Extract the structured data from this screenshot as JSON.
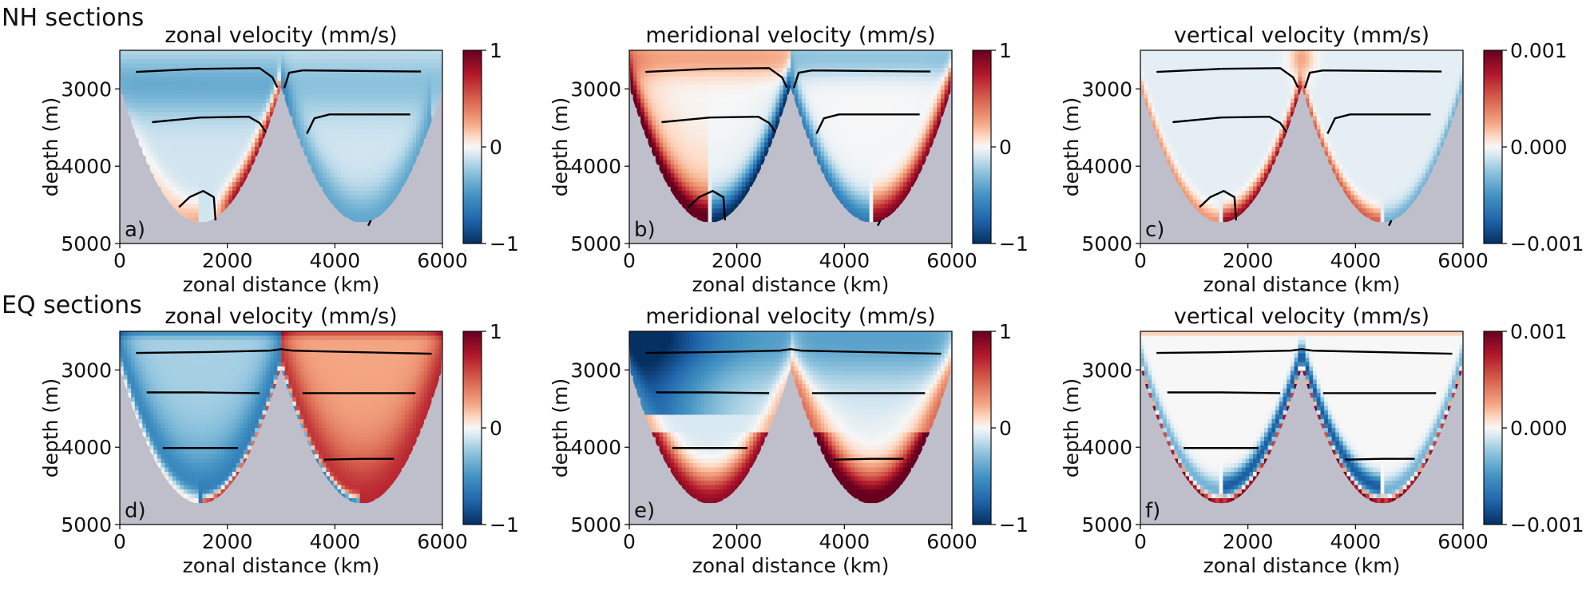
{
  "figure": {
    "sections": [
      "NH sections",
      "EQ sections"
    ],
    "bathymetry_color": "#bfbfcb"
  },
  "chart_data": [
    {
      "type": "heatmap",
      "row": 0,
      "col": 0,
      "panel_label": "a)",
      "title": "zonal velocity (mm/s)",
      "xlabel": "zonal distance (km)",
      "ylabel": "depth (m)",
      "xlim": [
        0,
        6000
      ],
      "ylim": [
        5000,
        2500
      ],
      "xticks": [
        "0",
        "2000",
        "4000",
        "6000"
      ],
      "yticks": [
        "3000",
        "4000",
        "5000"
      ],
      "colorbar": {
        "min": -1,
        "max": 1,
        "ticks": [
          "1",
          "0",
          "−1"
        ]
      },
      "field": "nh_u"
    },
    {
      "type": "heatmap",
      "row": 0,
      "col": 1,
      "panel_label": "b)",
      "title": "meridional velocity (mm/s)",
      "xlabel": "zonal distance (km)",
      "ylabel": "depth (m)",
      "xlim": [
        0,
        6000
      ],
      "ylim": [
        5000,
        2500
      ],
      "xticks": [
        "0",
        "2000",
        "4000",
        "6000"
      ],
      "yticks": [
        "3000",
        "4000",
        "5000"
      ],
      "colorbar": {
        "min": -1,
        "max": 1,
        "ticks": [
          "1",
          "0",
          "−1"
        ]
      },
      "field": "nh_v"
    },
    {
      "type": "heatmap",
      "row": 0,
      "col": 2,
      "panel_label": "c)",
      "title": "vertical velocity (mm/s)",
      "xlabel": "zonal distance (km)",
      "ylabel": "depth (m)",
      "xlim": [
        0,
        6000
      ],
      "ylim": [
        5000,
        2500
      ],
      "xticks": [
        "0",
        "2000",
        "4000",
        "6000"
      ],
      "yticks": [
        "3000",
        "4000",
        "5000"
      ],
      "colorbar": {
        "min": -0.001,
        "max": 0.001,
        "ticks": [
          "0.001",
          "0.000",
          "−0.001"
        ]
      },
      "field": "nh_w"
    },
    {
      "type": "heatmap",
      "row": 1,
      "col": 0,
      "panel_label": "d)",
      "title": "zonal velocity (mm/s)",
      "xlabel": "zonal distance (km)",
      "ylabel": "depth (m)",
      "xlim": [
        0,
        6000
      ],
      "ylim": [
        5000,
        2500
      ],
      "xticks": [
        "0",
        "2000",
        "4000",
        "6000"
      ],
      "yticks": [
        "3000",
        "4000",
        "5000"
      ],
      "colorbar": {
        "min": -1,
        "max": 1,
        "ticks": [
          "1",
          "0",
          "−1"
        ]
      },
      "field": "eq_u"
    },
    {
      "type": "heatmap",
      "row": 1,
      "col": 1,
      "panel_label": "e)",
      "title": "meridional velocity (mm/s)",
      "xlabel": "zonal distance (km)",
      "ylabel": "depth (m)",
      "xlim": [
        0,
        6000
      ],
      "ylim": [
        5000,
        2500
      ],
      "xticks": [
        "0",
        "2000",
        "4000",
        "6000"
      ],
      "yticks": [
        "3000",
        "4000",
        "5000"
      ],
      "colorbar": {
        "min": -1,
        "max": 1,
        "ticks": [
          "1",
          "0",
          "−1"
        ]
      },
      "field": "eq_v"
    },
    {
      "type": "heatmap",
      "row": 1,
      "col": 2,
      "panel_label": "f)",
      "title": "vertical velocity (mm/s)",
      "xlabel": "zonal distance (km)",
      "ylabel": "depth (m)",
      "xlim": [
        0,
        6000
      ],
      "ylim": [
        5000,
        2500
      ],
      "xticks": [
        "0",
        "2000",
        "4000",
        "6000"
      ],
      "yticks": [
        "3000",
        "4000",
        "5000"
      ],
      "colorbar": {
        "min": -0.001,
        "max": 0.001,
        "ticks": [
          "0.001",
          "0.000",
          "−0.001"
        ]
      },
      "field": "eq_w"
    }
  ]
}
